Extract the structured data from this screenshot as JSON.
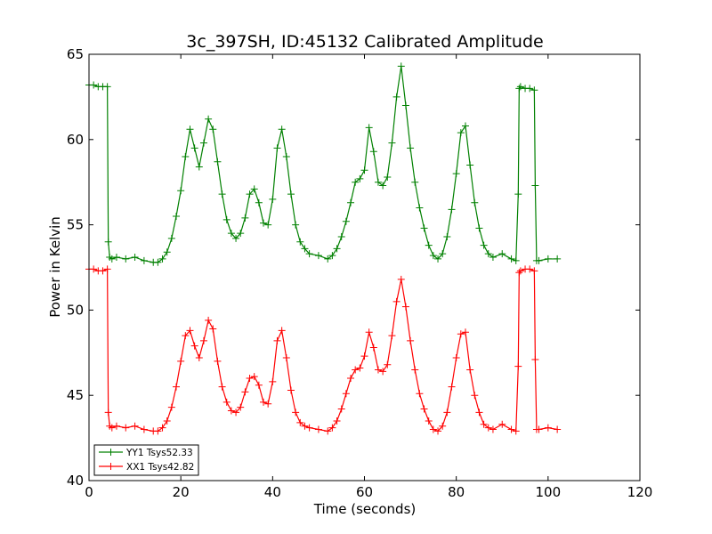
{
  "chart_data": {
    "type": "line",
    "title": "3c_397SH, ID:45132 Calibrated Amplitude",
    "xlabel": "Time (seconds)",
    "ylabel": "Power in Kelvin",
    "xlim": [
      0,
      120
    ],
    "ylim": [
      40,
      65
    ],
    "xticks": [
      0,
      20,
      40,
      60,
      80,
      100,
      120
    ],
    "yticks": [
      40,
      45,
      50,
      55,
      60,
      65
    ],
    "grid": false,
    "legend_position": "lower-left",
    "series": [
      {
        "name": "YY1 Tsys52.33",
        "color": "#008000",
        "marker": "+",
        "x": [
          0,
          1,
          2,
          3,
          4,
          4.2,
          4.5,
          5,
          6,
          8,
          10,
          12,
          14,
          15,
          16,
          17,
          18,
          19,
          20,
          21,
          22,
          23,
          24,
          25,
          26,
          27,
          28,
          29,
          30,
          31,
          32,
          33,
          34,
          35,
          36,
          37,
          38,
          39,
          40,
          41,
          42,
          43,
          44,
          45,
          46,
          47,
          48,
          50,
          52,
          53,
          54,
          55,
          56,
          57,
          58,
          59,
          60,
          61,
          62,
          63,
          64,
          65,
          66,
          67,
          68,
          69,
          70,
          71,
          72,
          73,
          74,
          75,
          76,
          77,
          78,
          79,
          80,
          81,
          82,
          83,
          84,
          85,
          86,
          87,
          88,
          90,
          92,
          93,
          93.5,
          93.7,
          94,
          95,
          96,
          97,
          97.2,
          97.5,
          98,
          100,
          102
        ],
        "y": [
          63.2,
          63.2,
          63.1,
          63.1,
          63.1,
          54.0,
          53.1,
          53.0,
          53.1,
          53.0,
          53.1,
          52.9,
          52.8,
          52.8,
          53.0,
          53.4,
          54.2,
          55.5,
          57.0,
          59.0,
          60.6,
          59.5,
          58.4,
          59.8,
          61.2,
          60.6,
          58.7,
          56.8,
          55.3,
          54.5,
          54.2,
          54.5,
          55.4,
          56.8,
          57.1,
          56.3,
          55.1,
          55.0,
          56.5,
          59.5,
          60.6,
          59.0,
          56.8,
          55.0,
          54.0,
          53.6,
          53.3,
          53.2,
          53.0,
          53.2,
          53.6,
          54.3,
          55.2,
          56.3,
          57.5,
          57.7,
          58.2,
          60.7,
          59.3,
          57.5,
          57.3,
          57.8,
          59.8,
          62.5,
          64.3,
          62.0,
          59.5,
          57.5,
          56.0,
          54.8,
          53.8,
          53.2,
          53.0,
          53.3,
          54.3,
          55.9,
          58.0,
          60.4,
          60.8,
          58.5,
          56.3,
          54.8,
          53.8,
          53.3,
          53.1,
          53.3,
          53.0,
          52.9,
          56.8,
          63.0,
          63.1,
          63.0,
          63.0,
          62.9,
          57.3,
          52.9,
          52.9,
          53.0,
          53.0
        ]
      },
      {
        "name": "XX1 Tsys42.82",
        "color": "#ff0000",
        "marker": "+",
        "x": [
          0,
          1,
          2,
          3,
          4,
          4.2,
          4.5,
          5,
          6,
          8,
          10,
          12,
          14,
          15,
          16,
          17,
          18,
          19,
          20,
          21,
          22,
          23,
          24,
          25,
          26,
          27,
          28,
          29,
          30,
          31,
          32,
          33,
          34,
          35,
          36,
          37,
          38,
          39,
          40,
          41,
          42,
          43,
          44,
          45,
          46,
          47,
          48,
          50,
          52,
          53,
          54,
          55,
          56,
          57,
          58,
          59,
          60,
          61,
          62,
          63,
          64,
          65,
          66,
          67,
          68,
          69,
          70,
          71,
          72,
          73,
          74,
          75,
          76,
          77,
          78,
          79,
          80,
          81,
          82,
          83,
          84,
          85,
          86,
          87,
          88,
          90,
          92,
          93,
          93.5,
          93.7,
          94,
          95,
          96,
          97,
          97.2,
          97.5,
          98,
          100,
          102
        ],
        "y": [
          52.4,
          52.4,
          52.3,
          52.3,
          52.4,
          44.0,
          43.2,
          43.1,
          43.2,
          43.1,
          43.2,
          43.0,
          42.9,
          42.9,
          43.1,
          43.5,
          44.3,
          45.5,
          47.0,
          48.5,
          48.8,
          47.9,
          47.2,
          48.2,
          49.4,
          48.9,
          47.0,
          45.5,
          44.6,
          44.1,
          44.0,
          44.3,
          45.2,
          46.0,
          46.1,
          45.6,
          44.6,
          44.5,
          45.8,
          48.2,
          48.8,
          47.2,
          45.3,
          44.0,
          43.4,
          43.2,
          43.1,
          43.0,
          42.9,
          43.1,
          43.5,
          44.2,
          45.1,
          46.0,
          46.5,
          46.6,
          47.3,
          48.7,
          47.8,
          46.5,
          46.4,
          46.8,
          48.5,
          50.5,
          51.8,
          50.2,
          48.2,
          46.5,
          45.1,
          44.2,
          43.5,
          43.0,
          42.9,
          43.2,
          44.0,
          45.5,
          47.2,
          48.6,
          48.7,
          46.5,
          45.0,
          44.0,
          43.3,
          43.1,
          43.0,
          43.3,
          43.0,
          42.9,
          46.7,
          52.2,
          52.3,
          52.4,
          52.4,
          52.3,
          47.1,
          43.0,
          43.0,
          43.1,
          43.0
        ]
      }
    ]
  }
}
